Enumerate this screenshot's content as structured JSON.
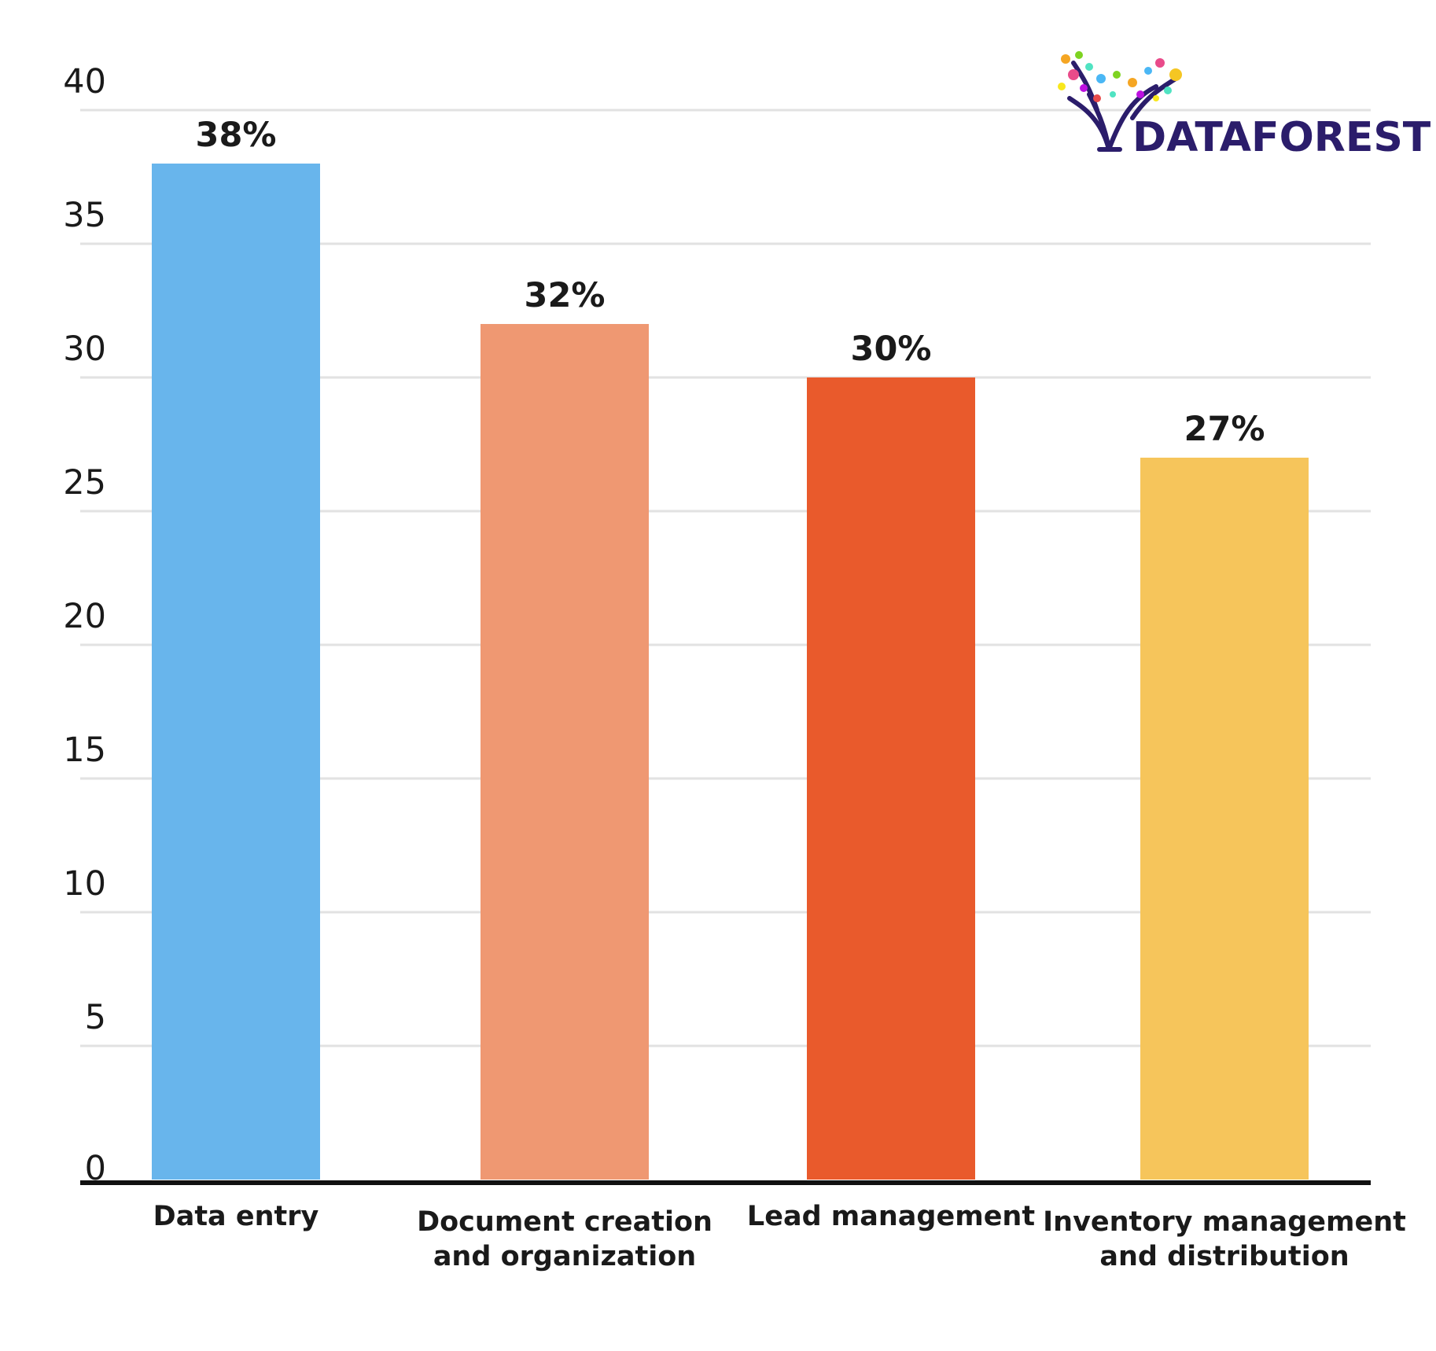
{
  "chart_data": {
    "type": "bar",
    "categories": [
      [
        "Data entry"
      ],
      [
        "Document creation",
        "and organization"
      ],
      [
        "Lead management"
      ],
      [
        "Inventory management",
        "and distribution"
      ]
    ],
    "values": [
      38,
      32,
      30,
      27
    ],
    "value_labels": [
      "38%",
      "32%",
      "30%",
      "27%"
    ],
    "colors": [
      "#68b5ec",
      "#ef9872",
      "#e95a2c",
      "#f6c55b"
    ],
    "ylim": [
      0,
      40
    ],
    "yticks": [
      0,
      5,
      10,
      15,
      20,
      25,
      30,
      35,
      40
    ],
    "grid": true,
    "title": "",
    "xlabel": "",
    "ylabel": ""
  },
  "logo": {
    "text": "DATAFOREST",
    "color": "#2b1d6b"
  }
}
